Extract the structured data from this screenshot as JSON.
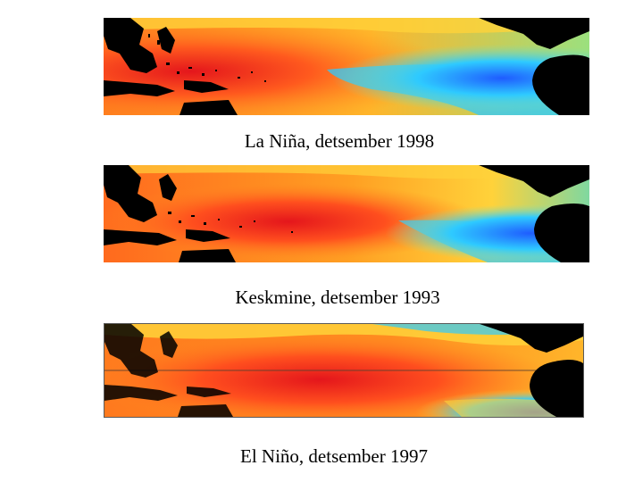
{
  "panels": [
    {
      "caption": "La Niña, detsember 1998"
    },
    {
      "caption": "Keskmine, detsember 1993"
    },
    {
      "caption": "El Niño, detsember 1997"
    }
  ],
  "colors": {
    "warm_max": "#e4161c",
    "warm": "#ff5a1e",
    "mid": "#ff9a20",
    "yellow": "#ffd23a",
    "light": "#a8e07a",
    "cyan": "#2ecaff",
    "blue": "#1f5cff",
    "land": "#000000"
  },
  "legend_icon": "sea-surface-temperature-map"
}
